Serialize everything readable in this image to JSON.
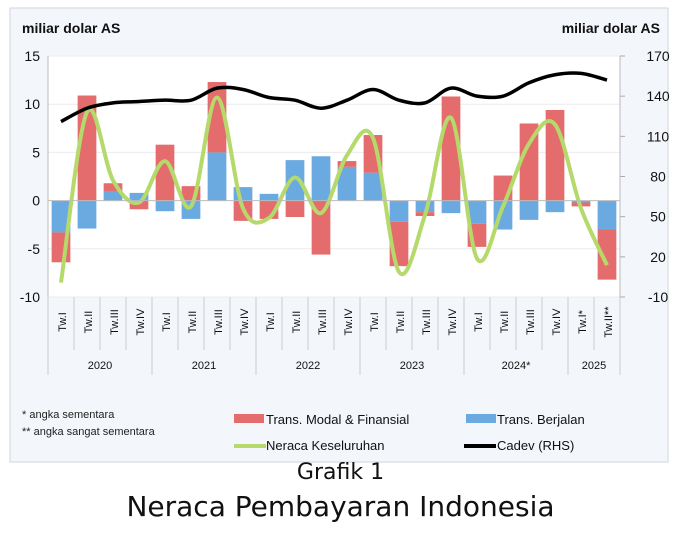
{
  "chart_data": {
    "type": "bar",
    "left_axis_label": "miliar dolar AS",
    "right_axis_label": "miliar dolar AS",
    "ylim": [
      -10,
      15
    ],
    "yticks": [
      -10,
      -5,
      0,
      5,
      10,
      15
    ],
    "y2lim": [
      -10,
      170
    ],
    "y2ticks": [
      -10,
      20,
      50,
      80,
      110,
      140,
      170
    ],
    "grid": true,
    "categories": [
      "Tw.I",
      "Tw.II",
      "Tw.III",
      "Tw.IV",
      "Tw.I",
      "Tw.II",
      "Tw.III",
      "Tw.IV",
      "Tw.I",
      "Tw.II",
      "Tw.III",
      "Tw.IV",
      "Tw.I",
      "Tw.II",
      "Tw.III",
      "Tw.IV",
      "Tw.I",
      "Tw.II",
      "Tw.III",
      "Tw.IV",
      "Tw.I*",
      "Tw.II**"
    ],
    "years": [
      {
        "label": "2020",
        "quarters": 4
      },
      {
        "label": "2021",
        "quarters": 4
      },
      {
        "label": "2022",
        "quarters": 4
      },
      {
        "label": "2023",
        "quarters": 4
      },
      {
        "label": "2024*",
        "quarters": 4
      },
      {
        "label": "2025",
        "quarters": 2
      }
    ],
    "series": [
      {
        "name": "Trans. Modal & Finansial",
        "kind": "bar",
        "axis": "left",
        "color": "#e46c6c",
        "values": [
          -3.1,
          10.9,
          0.8,
          -0.9,
          5.8,
          1.5,
          7.3,
          -2.1,
          -1.9,
          -1.7,
          -5.6,
          0.6,
          3.9,
          -4.6,
          -0.4,
          10.8,
          -2.4,
          2.6,
          8.0,
          9.4,
          -0.4,
          -5.2
        ]
      },
      {
        "name": "Trans. Berjalan",
        "kind": "bar",
        "axis": "left",
        "color": "#6aaae0",
        "values": [
          -3.3,
          -2.9,
          1.0,
          0.8,
          -1.1,
          -1.9,
          5.0,
          1.4,
          0.7,
          4.2,
          4.6,
          3.5,
          2.9,
          -2.2,
          -1.2,
          -1.3,
          -2.4,
          -3.0,
          -2.0,
          -1.2,
          -0.2,
          -3.0
        ]
      },
      {
        "name": "Neraca Keseluruhan",
        "kind": "line",
        "axis": "left",
        "color": "#b5d96a",
        "values": [
          -8.5,
          9.2,
          2.1,
          -0.2,
          4.1,
          -0.6,
          10.7,
          -0.8,
          -1.8,
          2.4,
          -1.3,
          4.7,
          6.5,
          -7.4,
          -1.5,
          8.6,
          -6.0,
          -0.6,
          5.9,
          7.9,
          -0.8,
          -6.7
        ]
      },
      {
        "name": "Cadev (RHS)",
        "kind": "line",
        "axis": "right",
        "color": "#000000",
        "values": [
          121,
          131,
          135,
          136,
          137,
          137,
          146,
          145,
          139,
          137,
          131,
          137,
          145,
          137,
          135,
          146,
          140,
          140,
          150,
          156,
          157,
          152
        ]
      }
    ],
    "legend_position": "bottom"
  },
  "notes": [
    "* angka sementara",
    "** angka sangat sementara"
  ],
  "caption": {
    "line1": "Grafik 1",
    "line2": "Neraca Pembayaran Indonesia"
  }
}
